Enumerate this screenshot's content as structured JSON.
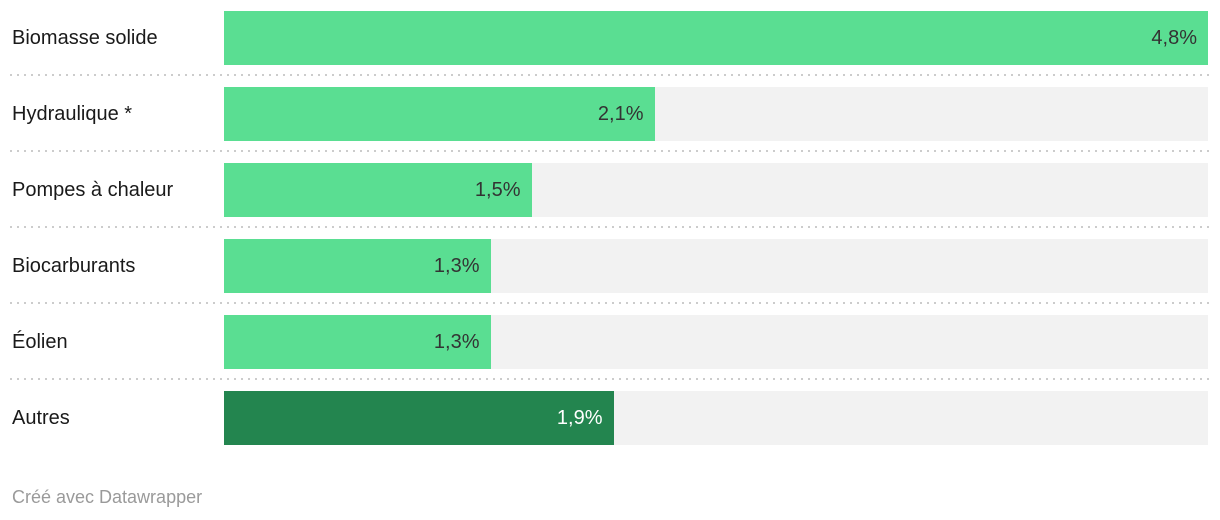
{
  "chart_data": {
    "type": "bar",
    "orientation": "horizontal",
    "categories": [
      "Biomasse solide",
      "Hydraulique *",
      "Pompes à chaleur",
      "Biocarburants",
      "Éolien",
      "Autres"
    ],
    "values": [
      4.8,
      2.1,
      1.5,
      1.3,
      1.3,
      1.9
    ],
    "value_labels": [
      "4,8%",
      "2,1%",
      "1,5%",
      "1,3%",
      "1,3%",
      "1,9%"
    ],
    "title": "",
    "xlabel": "",
    "ylabel": "",
    "xlim": [
      0,
      4.8
    ],
    "grid": false,
    "legend": false,
    "value_label_position": "inside-end"
  },
  "rows": [
    {
      "label": "Biomasse solide",
      "value_label": "4,8%",
      "color_key": "light"
    },
    {
      "label": "Hydraulique *",
      "value_label": "2,1%",
      "color_key": "light"
    },
    {
      "label": "Pompes à chaleur",
      "value_label": "1,5%",
      "color_key": "light"
    },
    {
      "label": "Biocarburants",
      "value_label": "1,3%",
      "color_key": "light"
    },
    {
      "label": "Éolien",
      "value_label": "1,3%",
      "color_key": "light"
    },
    {
      "label": "Autres",
      "value_label": "1,9%",
      "color_key": "dark"
    }
  ],
  "colors": {
    "light_bar": "#5ade92",
    "dark_bar": "#23854f",
    "track": "#f2f2f2",
    "separator": "#cccccc",
    "value_text_on_light": "#333333",
    "value_text_on_dark": "#ffffff",
    "label_text": "#1a1a1a",
    "footer_text": "#9a9a9a"
  },
  "footer": {
    "attribution": "Créé avec Datawrapper"
  }
}
